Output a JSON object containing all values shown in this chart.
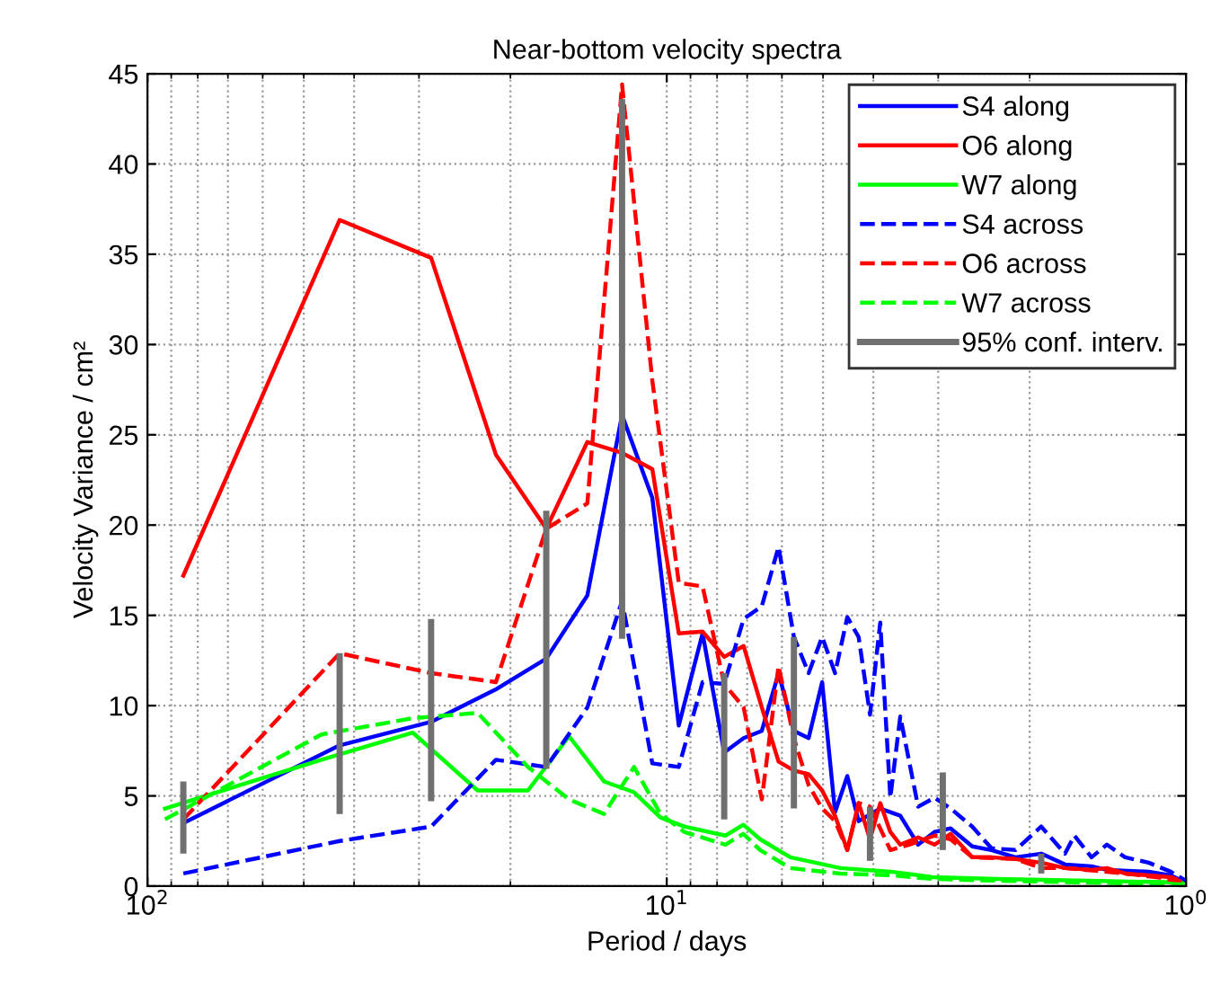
{
  "chart_data": {
    "type": "line",
    "title": "Near-bottom velocity spectra",
    "xlabel": "Period / days",
    "ylabel": "Velocity Variance / cm²",
    "log": "x",
    "xlim": [
      100,
      1
    ],
    "xticks": [
      {
        "value": 100,
        "label": "10$^{2}$"
      },
      {
        "value": 10,
        "label": "10$^{1}$"
      },
      {
        "value": 1,
        "label": "10$^{0}$"
      }
    ],
    "ylim": [
      0,
      45
    ],
    "yticks": [
      0,
      5,
      10,
      15,
      20,
      25,
      30,
      35,
      40,
      45
    ],
    "grid": true,
    "legend": "top right",
    "series": [
      {
        "name": "S4 along",
        "color": "#0000ff",
        "line_style": "solid",
        "x": [
          85.3,
          42.65,
          28.43,
          21.33,
          17.06,
          14.22,
          12.19,
          10.66,
          9.48,
          8.53,
          7.75,
          7.11,
          6.56,
          6.09,
          5.69,
          5.33,
          5.02,
          4.74,
          4.49,
          4.27,
          3.88,
          3.55,
          3.28,
          3.05,
          2.84,
          2.58,
          2.37,
          2.13,
          1.9,
          1.71,
          1.52,
          1.42,
          1.18,
          1.07,
          1.0
        ],
        "values": [
          3.5,
          7.8,
          9.1,
          10.9,
          12.6,
          16.1,
          26.1,
          21.5,
          8.9,
          14.0,
          7.4,
          8.2,
          8.6,
          11.8,
          8.6,
          8.2,
          11.3,
          4.1,
          6.1,
          3.6,
          4.3,
          3.9,
          2.3,
          3.0,
          3.2,
          2.2,
          2.0,
          1.6,
          1.8,
          1.2,
          1.1,
          0.9,
          0.8,
          0.6,
          0.2
        ]
      },
      {
        "name": "O6 along",
        "color": "#ff0000",
        "line_style": "solid",
        "x": [
          85.3,
          42.65,
          28.43,
          21.33,
          17.06,
          14.22,
          12.19,
          10.66,
          9.48,
          8.53,
          7.75,
          7.11,
          6.56,
          6.09,
          5.69,
          5.33,
          5.02,
          4.74,
          4.49,
          4.27,
          4.06,
          3.88,
          3.71,
          3.55,
          3.28,
          3.05,
          2.84,
          2.58,
          2.37,
          2.13,
          1.9,
          1.71,
          1.52,
          1.42,
          1.31,
          1.18,
          1.07,
          1.0
        ],
        "values": [
          17.2,
          36.9,
          34.8,
          23.9,
          19.8,
          24.6,
          24.0,
          23.1,
          14.0,
          14.1,
          12.7,
          13.3,
          9.9,
          6.9,
          6.4,
          6.2,
          5.3,
          3.9,
          2.0,
          4.6,
          2.6,
          4.6,
          3.0,
          2.3,
          2.7,
          2.3,
          2.9,
          1.6,
          1.6,
          1.5,
          1.3,
          1.0,
          0.9,
          1.0,
          0.7,
          0.6,
          0.5,
          0.2
        ]
      },
      {
        "name": "W7 along",
        "color": "#00ff00",
        "line_style": "solid",
        "x": [
          92.5,
          46.25,
          30.83,
          23.13,
          18.5,
          15.42,
          13.21,
          11.56,
          10.28,
          9.25,
          7.71,
          7.12,
          6.61,
          5.78,
          4.63,
          3.7,
          3.08,
          2.31,
          1.54,
          1.01
        ],
        "values": [
          4.3,
          7.0,
          8.5,
          5.3,
          5.3,
          8.3,
          5.8,
          5.2,
          3.8,
          3.3,
          2.8,
          3.4,
          2.6,
          1.6,
          1.0,
          0.8,
          0.5,
          0.4,
          0.3,
          0.2
        ]
      },
      {
        "name": "S4 across",
        "color": "#0000ff",
        "line_style": "dashed",
        "x": [
          85.3,
          42.65,
          28.43,
          21.33,
          17.06,
          14.22,
          12.19,
          10.66,
          9.48,
          8.53,
          7.75,
          7.11,
          6.56,
          6.09,
          5.69,
          5.33,
          5.02,
          4.74,
          4.49,
          4.27,
          4.06,
          3.88,
          3.71,
          3.55,
          3.28,
          3.05,
          2.84,
          2.58,
          2.37,
          2.13,
          1.9,
          1.71,
          1.64,
          1.52,
          1.42,
          1.31,
          1.18,
          1.07,
          1.0
        ],
        "values": [
          0.7,
          2.5,
          3.3,
          7.0,
          6.6,
          9.9,
          15.8,
          6.8,
          6.6,
          11.3,
          11.2,
          14.8,
          15.5,
          18.8,
          13.8,
          11.8,
          13.8,
          11.8,
          14.9,
          13.8,
          9.5,
          14.6,
          4.9,
          9.4,
          4.4,
          4.9,
          4.3,
          3.3,
          2.1,
          2.0,
          3.3,
          1.8,
          2.8,
          1.6,
          2.3,
          1.6,
          1.3,
          0.8,
          0.3
        ]
      },
      {
        "name": "O6 across",
        "color": "#ff0000",
        "line_style": "dashed",
        "x": [
          85.3,
          42.65,
          28.43,
          21.33,
          17.06,
          14.22,
          12.19,
          10.66,
          9.48,
          8.53,
          7.75,
          7.11,
          6.56,
          6.09,
          5.69,
          5.33,
          5.02,
          4.74,
          4.49,
          4.27,
          4.06,
          3.71,
          3.41,
          3.05,
          2.84,
          2.58,
          2.13,
          1.9,
          1.71,
          1.42,
          1.31,
          1.14,
          1.0
        ],
        "values": [
          3.7,
          12.9,
          11.8,
          11.3,
          19.8,
          21.2,
          44.4,
          28.0,
          16.8,
          16.6,
          11.2,
          9.9,
          4.8,
          12.2,
          8.2,
          5.6,
          4.3,
          3.6,
          2.0,
          4.6,
          4.4,
          2.0,
          2.3,
          2.8,
          2.6,
          1.6,
          1.5,
          1.0,
          1.0,
          0.8,
          0.7,
          0.5,
          0.2
        ]
      },
      {
        "name": "W7 across",
        "color": "#00ff00",
        "line_style": "dashed",
        "x": [
          92.5,
          46.25,
          30.83,
          23.13,
          18.5,
          15.42,
          13.21,
          11.56,
          10.28,
          9.25,
          7.71,
          7.12,
          6.61,
          5.78,
          4.63,
          3.7,
          3.08,
          2.31,
          1.54,
          1.01
        ],
        "values": [
          3.7,
          8.4,
          9.3,
          9.6,
          6.6,
          4.8,
          4.0,
          6.6,
          4.0,
          3.0,
          2.3,
          2.9,
          2.0,
          1.0,
          0.7,
          0.6,
          0.4,
          0.3,
          0.2,
          0.1
        ]
      },
      {
        "name": "95% conf. interv.",
        "type": "bar",
        "color": "#707070",
        "x": [
          85.3,
          42.65,
          28.43,
          17.06,
          12.19,
          7.75,
          5.69,
          4.06,
          2.94,
          1.9
        ],
        "base": [
          1.8,
          4.0,
          4.7,
          6.5,
          13.7,
          3.7,
          4.3,
          1.4,
          2.0,
          0.7
        ],
        "values": [
          4.0,
          8.9,
          10.1,
          14.3,
          29.9,
          8.1,
          9.5,
          3.0,
          4.3,
          1.1
        ]
      }
    ]
  }
}
